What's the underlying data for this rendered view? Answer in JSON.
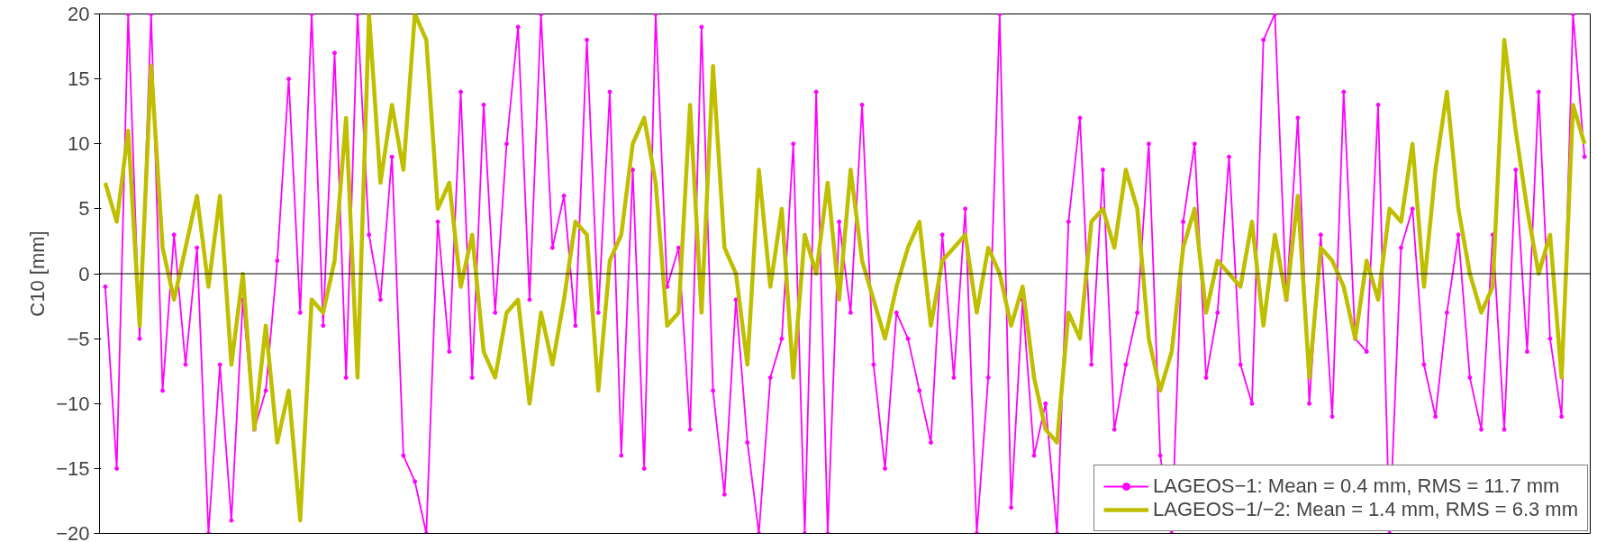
{
  "chart_data": {
    "type": "line",
    "ylabel": "C10 [mm]",
    "categories": [
      null,
      null,
      null,
      null,
      null,
      null,
      null,
      null,
      null,
      null,
      null,
      null,
      null,
      null,
      null,
      null,
      null,
      null,
      null,
      null,
      null,
      null,
      null,
      null,
      null,
      null,
      null,
      null,
      null,
      null,
      null,
      null,
      null,
      null,
      null,
      null,
      null,
      null,
      null,
      null,
      null,
      null,
      null,
      null,
      null,
      null,
      null,
      null,
      null,
      null,
      null,
      null,
      null,
      null,
      null,
      null,
      null,
      null,
      null,
      null,
      null,
      null,
      null,
      null,
      null,
      null,
      null,
      null,
      null,
      null,
      null,
      null,
      null,
      null,
      null,
      null,
      null,
      null,
      null,
      null,
      null,
      null,
      null,
      null,
      null,
      null,
      null,
      null,
      null,
      null,
      null,
      null,
      null,
      null,
      null,
      null,
      null,
      null,
      null,
      null,
      null,
      null,
      null,
      null,
      null,
      null,
      null,
      null,
      null,
      null,
      null,
      null,
      null,
      null,
      null,
      null,
      null,
      null,
      null,
      null,
      null,
      null,
      null,
      null,
      null,
      null,
      null,
      null,
      null,
      null
    ],
    "series": [
      {
        "name": "LAGEOS−1: Mean = 0.4 mm, RMS = 11.7 mm",
        "color": "#ff00ff",
        "marker": "circle",
        "values": [
          -1,
          -15,
          20,
          -5,
          20,
          -9,
          3,
          -7,
          2,
          -20,
          -7,
          -19,
          -2,
          -12,
          -9,
          1,
          15,
          -3,
          20,
          -4,
          17,
          -8,
          20,
          3,
          -2,
          9,
          -14,
          -16,
          -20,
          4,
          -6,
          14,
          -8,
          13,
          -3,
          10,
          19,
          -2,
          20,
          2,
          6,
          -4,
          18,
          -3,
          14,
          -14,
          8,
          -15,
          20,
          -1,
          2,
          -12,
          19,
          -9,
          -17,
          -2,
          -13,
          -20,
          -8,
          -5,
          10,
          -20,
          14,
          -20,
          4,
          -3,
          13,
          -7,
          -15,
          -3,
          -5,
          -9,
          -13,
          3,
          -8,
          5,
          -20,
          -8,
          20,
          -18,
          -2,
          -14,
          -10,
          -20,
          4,
          12,
          -7,
          8,
          -12,
          -7,
          -3,
          10,
          -14,
          -20,
          4,
          10,
          -8,
          -3,
          9,
          -7,
          -10,
          18,
          20,
          -2,
          12,
          -10,
          3,
          -11,
          14,
          -5,
          -6,
          13,
          -20,
          2,
          5,
          -7,
          -11,
          -3,
          3,
          -8,
          -12,
          3,
          -12,
          8,
          -6,
          14,
          -5,
          -11,
          20,
          9
        ],
        "line_style": "solid"
      },
      {
        "name": "LAGEOS−1/−2: Mean = 1.4 mm, RMS = 6.3 mm",
        "color": "#bfbf00",
        "marker": "none",
        "values": [
          7,
          4,
          11,
          -4,
          16,
          2,
          -2,
          2,
          6,
          -1,
          6,
          -7,
          0,
          -12,
          -4,
          -13,
          -9,
          -19,
          -2,
          -3,
          1,
          12,
          -8,
          20,
          7,
          13,
          8,
          20,
          18,
          5,
          7,
          -1,
          3,
          -6,
          -8,
          -3,
          -2,
          -10,
          -3,
          -7,
          -2,
          4,
          3,
          -9,
          1,
          3,
          10,
          12,
          7,
          -4,
          -3,
          13,
          -3,
          16,
          2,
          0,
          -7,
          8,
          -1,
          5,
          -8,
          3,
          0,
          7,
          -2,
          8,
          1,
          -2,
          -5,
          -1,
          2,
          4,
          -4,
          1,
          2,
          3,
          -3,
          2,
          0,
          -4,
          -1,
          -8,
          -12,
          -13,
          -3,
          -5,
          4,
          5,
          2,
          8,
          5,
          -5,
          -9,
          -6,
          2,
          5,
          -3,
          1,
          0,
          -1,
          4,
          -4,
          3,
          -2,
          6,
          -8,
          2,
          1,
          -1,
          -5,
          1,
          -2,
          5,
          4,
          10,
          -1,
          8,
          14,
          5,
          0,
          -3,
          -1,
          18,
          11,
          5,
          0,
          3,
          -8,
          13,
          10
        ]
      }
    ],
    "ylim": [
      -20,
      20
    ],
    "yticks": [
      -20,
      -15,
      -10,
      -5,
      0,
      5,
      10,
      15,
      20
    ],
    "ref_lines": [
      {
        "axis": "y",
        "value": 0,
        "color": "#000000"
      }
    ],
    "grid": false,
    "legend": "bottom right",
    "tick_labels": "y"
  }
}
